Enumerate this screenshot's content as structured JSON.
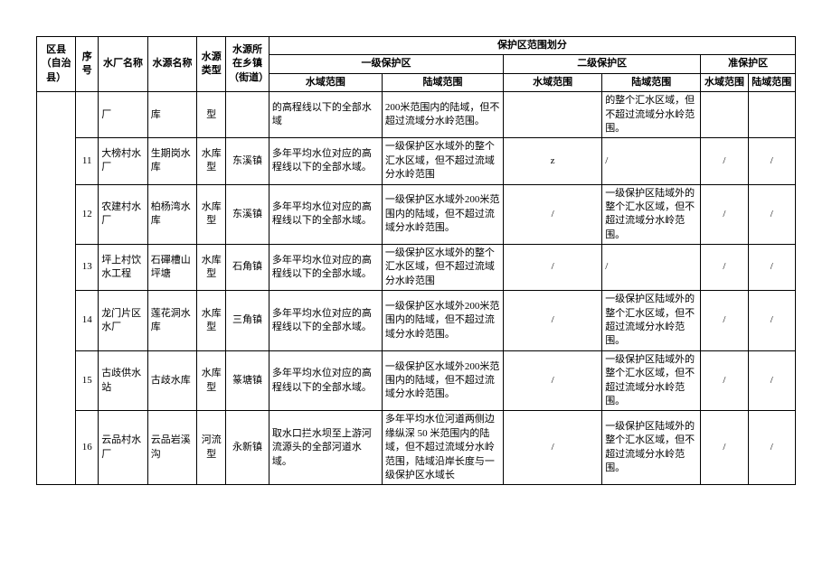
{
  "headers": {
    "county": "区县（自治县）",
    "seq": "序号",
    "plant": "水厂名称",
    "source": "水源名称",
    "type": "水源类型",
    "town": "水源所在乡镇（街道）",
    "protection_title": "保护区范围划分",
    "level1": "一级保护区",
    "level2": "二级保护区",
    "quasi": "准保护区",
    "water_scope": "水域范围",
    "land_scope": "陆域范围"
  },
  "rows": [
    {
      "seq": "",
      "plant": "厂",
      "source": "库",
      "type": "型",
      "town": "",
      "l1_water": "的高程线以下的全部水域",
      "l1_land": "200米范围内的陆域，但不超过流域分水岭范围。",
      "l2_water": "",
      "l2_land": "的整个汇水区域，但不超过流域分水岭范围。",
      "q_water": "",
      "q_land": ""
    },
    {
      "seq": "11",
      "plant": "大榜村水厂",
      "source": "生期岗水库",
      "type": "水库型",
      "town": "东溪镇",
      "l1_water": "多年平均水位对应的高程线以下的全部水域。",
      "l1_land": "一级保护区水域外的整个汇水区域，但不超过流域分水岭范围",
      "l2_water": "z",
      "l2_land": "/",
      "q_water": "/",
      "q_land": "/"
    },
    {
      "seq": "12",
      "plant": "农建村水厂",
      "source": "柏杨湾水库",
      "type": "水库型",
      "town": "东溪镇",
      "l1_water": "多年平均水位对应的高程线以下的全部水域。",
      "l1_land": "一级保护区水域外200米范围内的陆域，但不超过流域分水岭范围。",
      "l2_water": "/",
      "l2_land": "一级保护区陆域外的整个汇水区域，但不超过流域分水岭范围。",
      "q_water": "/",
      "q_land": "/"
    },
    {
      "seq": "13",
      "plant": "坪上村饮水工程",
      "source": "石磾槽山坪塘",
      "type": "水库型",
      "town": "石角镇",
      "l1_water": "多年平均水位对应的高程线以下的全部水域。",
      "l1_land": "一级保护区水域外的整个汇水区域，但不超过流域分水岭范围",
      "l2_water": "/",
      "l2_land": "/",
      "q_water": "/",
      "q_land": "/"
    },
    {
      "seq": "14",
      "plant": "龙门片区水厂",
      "source": "莲花洞水库",
      "type": "水库型",
      "town": "三角镇",
      "l1_water": "多年平均水位对应的高程线以下的全部水域。",
      "l1_land": "一级保护区水域外200米范围内的陆域，但不超过流域分水岭范围。",
      "l2_water": "/",
      "l2_land": "一级保护区陆域外的整个汇水区域，但不超过流域分水岭范围。",
      "q_water": "/",
      "q_land": "/"
    },
    {
      "seq": "15",
      "plant": "古歧供水站",
      "source": "古歧水库",
      "type": "水库型",
      "town": "篆塘镇",
      "l1_water": "多年平均水位对应的高程线以下的全部水域。",
      "l1_land": "一级保护区水域外200米范围内的陆域，但不超过流域分水岭范围。",
      "l2_water": "/",
      "l2_land": "一级保护区陆域外的整个汇水区域，但不超过流域分水岭范围。",
      "q_water": "/",
      "q_land": "/"
    },
    {
      "seq": "16",
      "plant": "云品村水厂",
      "source": "云品岩溪沟",
      "type": "河流型",
      "town": "永新镇",
      "l1_water": "取水口拦水坝至上游河流源头的全部河道水域。",
      "l1_land": "多年平均水位河道两侧边缘纵深 50 米范围内的陆域，但不超过流域分水岭范围，陆域沿岸长度与一级保护区水域长",
      "l2_water": "/",
      "l2_land": "一级保护区陆域外的整个汇水区域，但不超过流域分水岭范围。",
      "q_water": "/",
      "q_land": "/"
    }
  ]
}
